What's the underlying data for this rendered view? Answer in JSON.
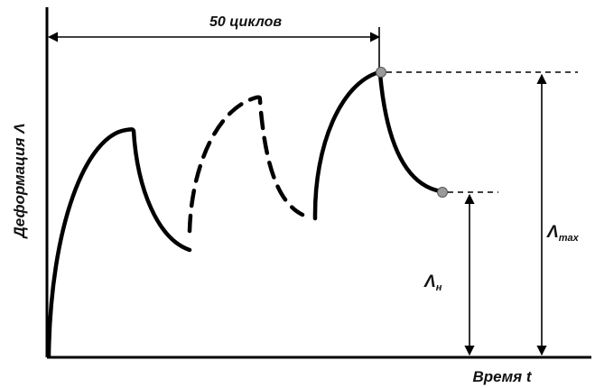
{
  "diagram": {
    "cycles_label": "50 циклов",
    "y_axis_label": "Деформация Λ",
    "x_axis_label": "Время t",
    "max_label": {
      "symbol": "Λ",
      "subscript": "max"
    },
    "residual_label": {
      "symbol": "Λ",
      "subscript": "н"
    },
    "colors": {
      "line": "#000000",
      "marker": "#9a9a9a",
      "background": "#ffffff"
    }
  }
}
